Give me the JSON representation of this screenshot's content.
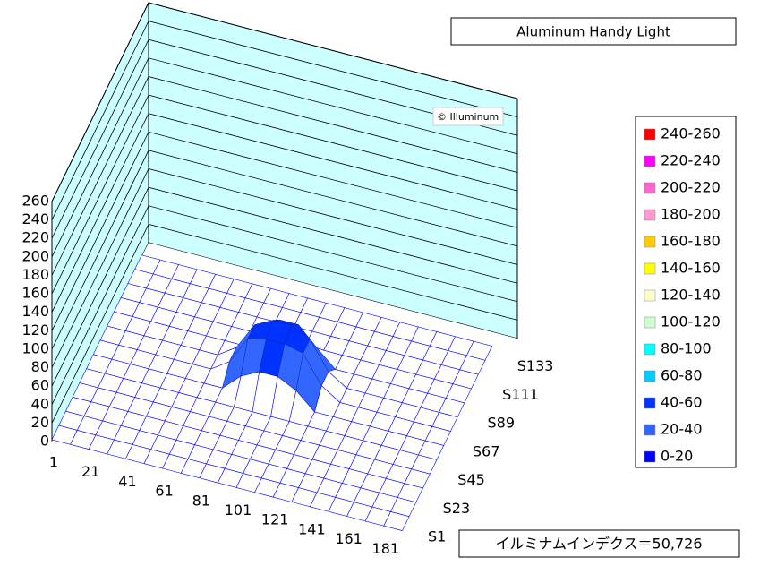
{
  "chart_data": {
    "type": "surface3d",
    "title": "Aluminum Handy Light",
    "watermark": "© Illuminum",
    "footer": "イルミナムインデクス＝50,726",
    "categories": [
      "1",
      null,
      "21",
      null,
      "41",
      null,
      "61",
      null,
      "81",
      null,
      "101",
      null,
      "121",
      null,
      "141",
      null,
      "161",
      null,
      "181",
      null
    ],
    "series_labels": [
      "S1",
      null,
      "S23",
      null,
      "S45",
      null,
      "S67",
      null,
      "S89",
      null,
      "S111",
      null,
      "S133",
      null
    ],
    "zlim": [
      0,
      260
    ],
    "zticks": [
      0,
      20,
      40,
      60,
      80,
      100,
      120,
      140,
      160,
      180,
      200,
      220,
      240,
      260
    ],
    "legend": [
      {
        "label": "240-260",
        "range": [
          240,
          260
        ],
        "color": "#ff0000"
      },
      {
        "label": "220-240",
        "range": [
          220,
          240
        ],
        "color": "#ff00ff"
      },
      {
        "label": "200-220",
        "range": [
          200,
          220
        ],
        "color": "#ff66cc"
      },
      {
        "label": "180-200",
        "range": [
          180,
          200
        ],
        "color": "#ff99cc"
      },
      {
        "label": "160-180",
        "range": [
          160,
          180
        ],
        "color": "#ffcc00"
      },
      {
        "label": "140-160",
        "range": [
          140,
          160
        ],
        "color": "#ffff00"
      },
      {
        "label": "120-140",
        "range": [
          120,
          140
        ],
        "color": "#ffffcc"
      },
      {
        "label": "100-120",
        "range": [
          100,
          120
        ],
        "color": "#ccffcc"
      },
      {
        "label": "80-100",
        "range": [
          80,
          100
        ],
        "color": "#00ffff"
      },
      {
        "label": "60-80",
        "range": [
          60,
          80
        ],
        "color": "#00ccff"
      },
      {
        "label": "40-60",
        "range": [
          40,
          60
        ],
        "color": "#0033ff"
      },
      {
        "label": "20-40",
        "range": [
          20,
          40
        ],
        "color": "#3366ff"
      },
      {
        "label": "0-20",
        "range": [
          0,
          20
        ],
        "color": "#0000ff"
      }
    ],
    "z": [
      [
        2,
        2,
        2,
        2,
        2,
        2,
        2,
        2,
        2,
        2,
        2,
        2,
        2,
        2,
        2,
        2,
        2,
        2,
        2,
        2
      ],
      [
        2,
        2,
        2,
        2,
        2,
        2,
        2,
        2,
        2,
        2,
        2,
        2,
        2,
        2,
        2,
        2,
        2,
        2,
        2,
        2
      ],
      [
        2,
        2,
        2,
        2,
        2,
        2,
        2,
        2,
        2,
        2,
        2,
        2,
        2,
        2,
        2,
        2,
        2,
        2,
        2,
        2
      ],
      [
        2,
        2,
        2,
        2,
        2,
        2,
        2,
        2,
        2,
        2,
        2,
        2,
        2,
        2,
        2,
        2,
        2,
        2,
        2,
        2
      ],
      [
        2,
        2,
        2,
        2,
        2,
        2,
        2,
        2,
        2,
        2,
        2,
        2,
        2,
        2,
        2,
        2,
        2,
        2,
        2,
        2
      ],
      [
        2,
        2,
        2,
        2,
        2,
        2,
        2,
        2,
        2,
        2,
        2,
        2,
        2,
        2,
        2,
        2,
        2,
        2,
        2,
        2
      ],
      [
        2,
        2,
        2,
        2,
        2,
        2,
        2,
        2,
        20,
        30,
        30,
        20,
        2,
        2,
        2,
        2,
        2,
        2,
        2,
        2
      ],
      [
        2,
        2,
        2,
        2,
        2,
        2,
        2,
        15,
        45,
        50,
        50,
        45,
        15,
        2,
        2,
        2,
        2,
        2,
        2,
        2
      ],
      [
        2,
        2,
        2,
        2,
        2,
        2,
        2,
        15,
        45,
        55,
        55,
        45,
        15,
        2,
        2,
        2,
        2,
        2,
        2,
        2
      ],
      [
        2,
        2,
        2,
        2,
        2,
        2,
        2,
        2,
        20,
        40,
        40,
        20,
        2,
        2,
        2,
        2,
        2,
        2,
        2,
        2
      ],
      [
        2,
        2,
        2,
        2,
        2,
        2,
        2,
        2,
        2,
        2,
        2,
        2,
        2,
        2,
        2,
        2,
        2,
        2,
        2,
        2
      ],
      [
        2,
        2,
        2,
        2,
        2,
        2,
        2,
        2,
        2,
        2,
        2,
        2,
        2,
        2,
        2,
        2,
        2,
        2,
        2,
        2
      ],
      [
        2,
        2,
        2,
        2,
        2,
        2,
        2,
        2,
        2,
        2,
        2,
        2,
        2,
        2,
        2,
        2,
        2,
        2,
        2,
        2
      ],
      [
        2,
        2,
        2,
        2,
        2,
        2,
        2,
        2,
        2,
        2,
        2,
        2,
        2,
        2,
        2,
        2,
        2,
        2,
        2,
        2
      ]
    ]
  }
}
